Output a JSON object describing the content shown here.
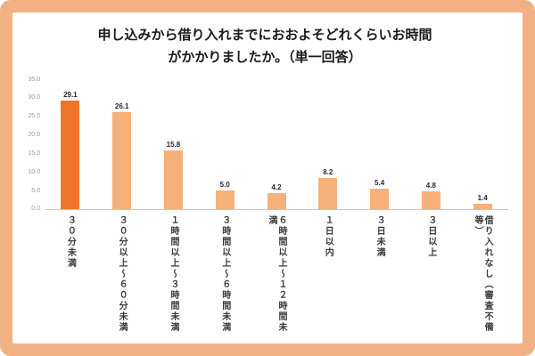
{
  "page": {
    "background_color": "#f2b184",
    "card_background": "#ffffff"
  },
  "chart_data": {
    "type": "bar",
    "title": "申し込みから借り入れまでにおおよそどれくらいお時間がかかりましたか。（単一回答）",
    "title_lines": [
      "申し込みから借り入れまでにおおよそどれくらいお時間",
      "がかかりましたか。（単一回答）"
    ],
    "categories": [
      "３０分未満",
      "３０分以上～６０分未満",
      "１時間以上～３時間未満",
      "３時間以上～６時間未満",
      "６時間以上～１２時間未満",
      "１日以内",
      "３日未満",
      "３日以上",
      "借り入れなし（審査不備等）"
    ],
    "values": [
      29.1,
      26.1,
      15.8,
      5.0,
      4.2,
      8.2,
      5.4,
      4.8,
      1.4
    ],
    "value_labels": [
      "29.1",
      "26.1",
      "15.8",
      "5.0",
      "4.2",
      "8.2",
      "5.4",
      "4.8",
      "1.4"
    ],
    "ylim": [
      0,
      35
    ],
    "ytick_labels": [
      "35.0",
      "30.0",
      "25.0",
      "20.0",
      "15.0",
      "10.0",
      "5.0",
      "0.0"
    ],
    "highlight_index": 0,
    "grid": "off",
    "legend": "none",
    "colors": {
      "highlight_bar": "#ed7628",
      "normal_bar": "#f6b07a",
      "value_label": "#262635",
      "category_label": "#3a3a3a",
      "axis_label": "#999999",
      "baseline": "#c9c9c9"
    }
  }
}
